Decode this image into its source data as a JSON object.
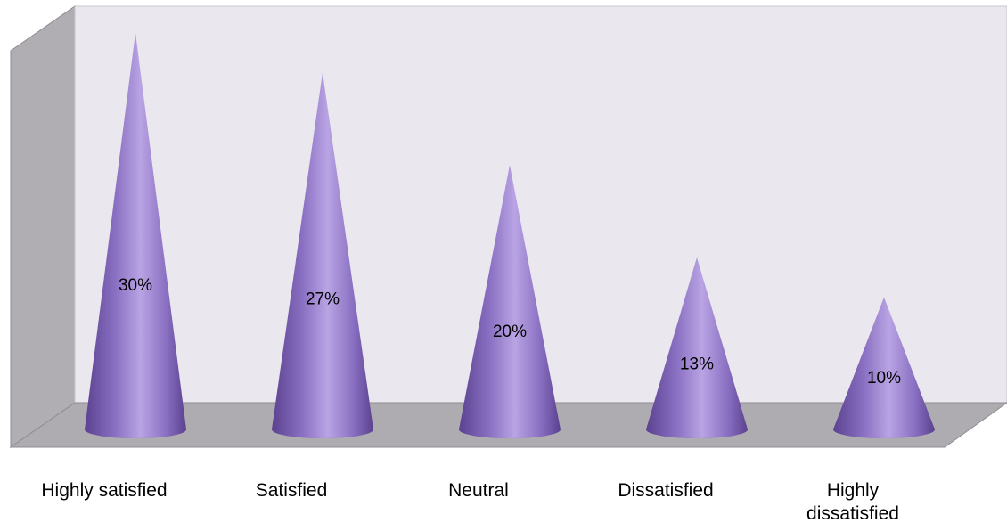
{
  "chart_data": {
    "type": "bar",
    "mark": "cone",
    "categories": [
      "Highly satisfied",
      "Satisfied",
      "Neutral",
      "Dissatisfied",
      "Highly dissatisfied"
    ],
    "category_labels_wrapped": [
      "Highly satisfied",
      "Satisfied",
      "Neutral",
      "Dissatisfied",
      "Highly\ndissatisfied"
    ],
    "values": [
      30,
      27,
      20,
      13,
      10
    ],
    "data_labels": [
      "30%",
      "27%",
      "20%",
      "13%",
      "10%"
    ],
    "ylim": [
      0,
      32
    ],
    "grid": false,
    "legend": "none",
    "colors": {
      "cone_light": "#b9a4e4",
      "cone_mid": "#8a70c2",
      "cone_dark": "#5b4290",
      "back_wall": "#eae7ef",
      "side_wall": "#b0aeb3",
      "floor": "#aeacb1",
      "edge": "#7d7b80"
    }
  }
}
